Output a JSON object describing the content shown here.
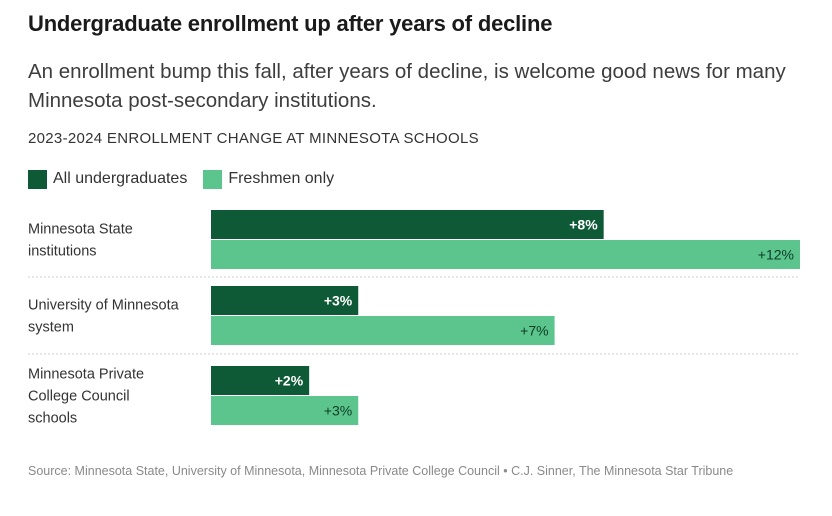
{
  "header": {
    "title": "Undergraduate enrollment up after years of decline",
    "subtitle": "An enrollment bump this fall, after years of decline, is welcome good news for many Minnesota post-secondary institutions.",
    "kicker": "2023-2024 ENROLLMENT CHANGE AT MINNESOTA SCHOOLS"
  },
  "legend": {
    "items": [
      {
        "label": "All undergraduates",
        "color": "#0f5a36"
      },
      {
        "label": "Freshmen only",
        "color": "#5cc58e"
      }
    ]
  },
  "chart_data": {
    "type": "bar",
    "orientation": "horizontal",
    "categories": [
      [
        "Minnesota State",
        "institutions"
      ],
      [
        "University of Minnesota",
        "system"
      ],
      [
        "Minnesota Private",
        "College Council",
        "schools"
      ]
    ],
    "series": [
      {
        "name": "All undergraduates",
        "color": "#0f5a36",
        "values": [
          8,
          3,
          2
        ],
        "labels": [
          "+8%",
          "+3%",
          "+2%"
        ]
      },
      {
        "name": "Freshmen only",
        "color": "#5cc58e",
        "values": [
          12,
          7,
          3
        ],
        "labels": [
          "+12%",
          "+7%",
          "+3%"
        ]
      }
    ],
    "xlim": [
      0,
      12
    ],
    "unit": "%",
    "grid": false,
    "legend_position": "top-left"
  },
  "source": "Source: Minnesota State, University of Minnesota, Minnesota Private College Council • C.J. Sinner, The Minnesota Star Tribune"
}
